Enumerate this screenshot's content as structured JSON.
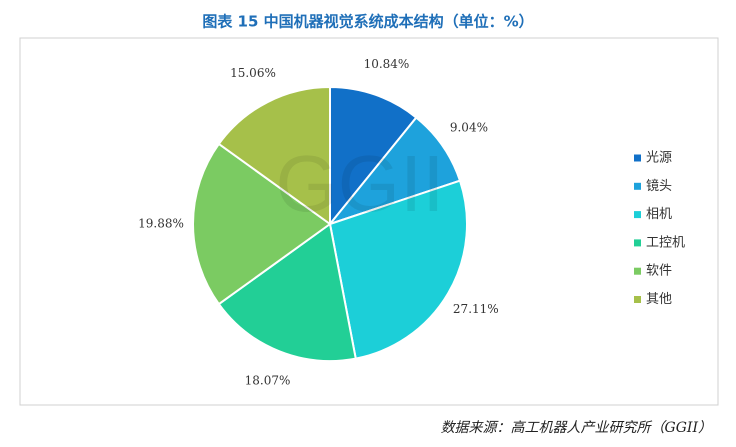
{
  "chart_data": {
    "type": "pie",
    "title": "图表 15 中国机器视觉系统成本结构（单位：%）",
    "categories": [
      "光源",
      "镜头",
      "相机",
      "工控机",
      "软件",
      "其他"
    ],
    "values": [
      10.84,
      9.04,
      27.11,
      18.07,
      19.88,
      15.06
    ],
    "value_labels": [
      "10.84%",
      "9.04%",
      "27.11%",
      "18.07%",
      "19.88%",
      "15.06%"
    ],
    "colors": [
      "#1170c8",
      "#1ea2dc",
      "#1ccfd8",
      "#22cf96",
      "#7bcb62",
      "#a6c04a"
    ],
    "legend": "right",
    "watermark": "GGII",
    "source": "数据来源：高工机器人产业研究所（GGII）"
  }
}
